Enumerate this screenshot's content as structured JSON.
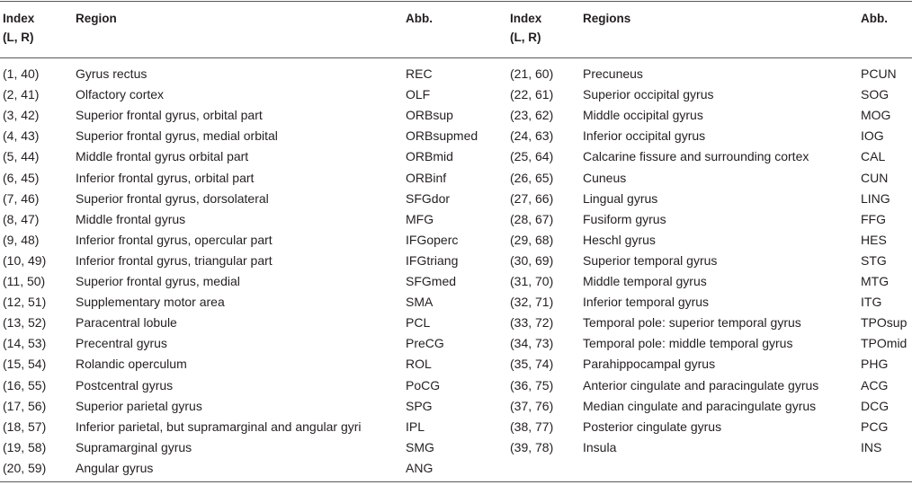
{
  "headers": {
    "left": {
      "index": "Index\n(L, R)",
      "index_l1": "Index",
      "index_l2": "(L, R)",
      "region": "Region",
      "abb": "Abb."
    },
    "right": {
      "index_l1": "Index",
      "index_l2": "(L, R)",
      "region": "Regions",
      "abb": "Abb."
    }
  },
  "left_rows": [
    {
      "index": "(1, 40)",
      "region": "Gyrus rectus",
      "abb": "REC"
    },
    {
      "index": "(2, 41)",
      "region": "Olfactory cortex",
      "abb": "OLF"
    },
    {
      "index": "(3, 42)",
      "region": "Superior frontal gyrus, orbital part",
      "abb": "ORBsup"
    },
    {
      "index": "(4, 43)",
      "region": "Superior frontal gyrus, medial orbital",
      "abb": "ORBsupmed"
    },
    {
      "index": "(5, 44)",
      "region": "Middle frontal gyrus orbital part",
      "abb": "ORBmid"
    },
    {
      "index": "(6, 45)",
      "region": "Inferior frontal gyrus, orbital part",
      "abb": "ORBinf"
    },
    {
      "index": "(7, 46)",
      "region": "Superior frontal gyrus, dorsolateral",
      "abb": "SFGdor"
    },
    {
      "index": "(8, 47)",
      "region": "Middle frontal gyrus",
      "abb": "MFG"
    },
    {
      "index": "(9, 48)",
      "region": "Inferior frontal gyrus, opercular part",
      "abb": "IFGoperc"
    },
    {
      "index": "(10, 49)",
      "region": "Inferior frontal gyrus, triangular part",
      "abb": "IFGtriang"
    },
    {
      "index": "(11, 50)",
      "region": "Superior frontal gyrus, medial",
      "abb": "SFGmed"
    },
    {
      "index": "(12, 51)",
      "region": "Supplementary motor area",
      "abb": "SMA"
    },
    {
      "index": "(13, 52)",
      "region": "Paracentral lobule",
      "abb": "PCL"
    },
    {
      "index": "(14, 53)",
      "region": "Precentral gyrus",
      "abb": "PreCG"
    },
    {
      "index": "(15, 54)",
      "region": "Rolandic operculum",
      "abb": "ROL"
    },
    {
      "index": "(16, 55)",
      "region": "Postcentral gyrus",
      "abb": "PoCG"
    },
    {
      "index": "(17, 56)",
      "region": "Superior parietal gyrus",
      "abb": "SPG"
    },
    {
      "index": "(18, 57)",
      "region": "Inferior parietal, but supramarginal and angular gyri",
      "abb": "IPL"
    },
    {
      "index": "(19, 58)",
      "region": "Supramarginal gyrus",
      "abb": "SMG"
    },
    {
      "index": "(20, 59)",
      "region": "Angular gyrus",
      "abb": "ANG"
    }
  ],
  "right_rows": [
    {
      "index": "(21, 60)",
      "region": "Precuneus",
      "abb": "PCUN"
    },
    {
      "index": "(22, 61)",
      "region": "Superior occipital gyrus",
      "abb": "SOG"
    },
    {
      "index": "(23, 62)",
      "region": "Middle occipital gyrus",
      "abb": "MOG"
    },
    {
      "index": "(24, 63)",
      "region": "Inferior occipital gyrus",
      "abb": "IOG"
    },
    {
      "index": "(25, 64)",
      "region": "Calcarine fissure and surrounding cortex",
      "abb": "CAL"
    },
    {
      "index": "(26, 65)",
      "region": "Cuneus",
      "abb": "CUN"
    },
    {
      "index": "(27, 66)",
      "region": "Lingual gyrus",
      "abb": "LING"
    },
    {
      "index": "(28, 67)",
      "region": "Fusiform gyrus",
      "abb": "FFG"
    },
    {
      "index": "(29, 68)",
      "region": "Heschl gyrus",
      "abb": "HES"
    },
    {
      "index": "(30, 69)",
      "region": "Superior temporal gyrus",
      "abb": "STG"
    },
    {
      "index": "(31, 70)",
      "region": "Middle temporal gyrus",
      "abb": "MTG"
    },
    {
      "index": "(32, 71)",
      "region": "Inferior temporal gyrus",
      "abb": "ITG"
    },
    {
      "index": "(33, 72)",
      "region": "Temporal pole: superior temporal gyrus",
      "abb": "TPOsup"
    },
    {
      "index": "(34, 73)",
      "region": "Temporal pole: middle temporal gyrus",
      "abb": "TPOmid"
    },
    {
      "index": "(35, 74)",
      "region": "Parahippocampal gyrus",
      "abb": "PHG"
    },
    {
      "index": "(36, 75)",
      "region": "Anterior cingulate and paracingulate gyrus",
      "abb": "ACG"
    },
    {
      "index": "(37, 76)",
      "region": "Median cingulate and paracingulate gyrus",
      "abb": "DCG"
    },
    {
      "index": "(38, 77)",
      "region": "Posterior cingulate gyrus",
      "abb": "PCG"
    },
    {
      "index": "(39, 78)",
      "region": "Insula",
      "abb": "INS"
    }
  ]
}
